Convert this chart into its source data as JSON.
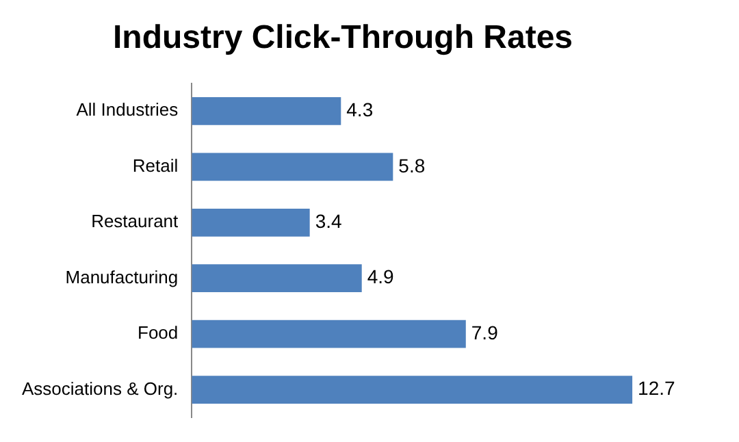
{
  "chart_data": {
    "type": "bar",
    "orientation": "horizontal",
    "title": "Industry Click-Through Rates",
    "categories": [
      "All Industries",
      "Retail",
      "Restaurant",
      "Manufacturing",
      "Food",
      "Associations & Org."
    ],
    "values": [
      4.3,
      5.8,
      3.4,
      4.9,
      7.9,
      12.7
    ],
    "color": "#4f81bd",
    "data_labels": true,
    "tick_labels": "y",
    "grid": false,
    "legend": false
  }
}
